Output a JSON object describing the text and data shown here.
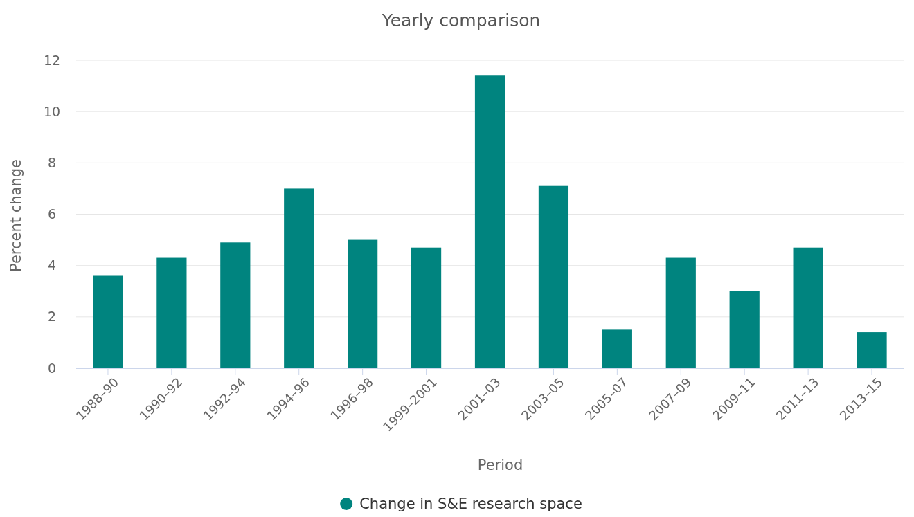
{
  "chart_data": {
    "type": "bar",
    "title": "Yearly comparison",
    "xlabel": "Period",
    "ylabel": "Percent change",
    "categories": [
      "1988–90",
      "1990–92",
      "1992–94",
      "1994–96",
      "1996–98",
      "1999–2001",
      "2001–03",
      "2003–05",
      "2005–07",
      "2007–09",
      "2009–11",
      "2011–13",
      "2013–15"
    ],
    "series": [
      {
        "name": "Change in S&E research space",
        "color": "#00847f",
        "values": [
          3.6,
          4.3,
          4.9,
          7.0,
          5.0,
          4.7,
          11.4,
          7.1,
          1.5,
          4.3,
          3.0,
          4.7,
          1.4
        ]
      }
    ],
    "ylim": [
      0,
      12
    ],
    "yticks": [
      0,
      2,
      4,
      6,
      8,
      10,
      12
    ],
    "grid": "y",
    "legend": "bottom"
  }
}
